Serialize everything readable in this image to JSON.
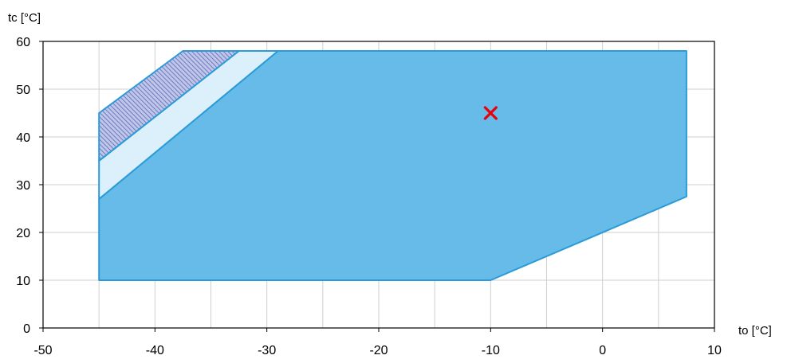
{
  "chart_data": {
    "type": "area",
    "xlabel": "to [°C]",
    "ylabel": "tc [°C]",
    "xlim": [
      -50,
      10
    ],
    "ylim": [
      0,
      60
    ],
    "x_ticks": [
      -50,
      -40,
      -30,
      -20,
      -10,
      0,
      10
    ],
    "y_ticks": [
      0,
      10,
      20,
      30,
      40,
      50,
      60
    ],
    "x_tick_labels": [
      "-50",
      "-40",
      "-30",
      "-20",
      "-10",
      "0",
      "10"
    ],
    "y_tick_labels": [
      "0",
      "10",
      "20",
      "30",
      "40",
      "50",
      "60"
    ],
    "grid": true,
    "regions": [
      {
        "fill": "#66bbe8",
        "stroke": "#2b9bd8",
        "points": [
          [
            -45,
            10
          ],
          [
            -10,
            10
          ],
          [
            7.5,
            27.5
          ],
          [
            7.5,
            58
          ],
          [
            -29,
            58
          ],
          [
            -45,
            27
          ]
        ]
      },
      {
        "fill": "#dcf0fb",
        "stroke": "#2b9bd8",
        "points": [
          [
            -45,
            27
          ],
          [
            -29,
            58
          ],
          [
            -32.5,
            58
          ],
          [
            -45,
            35
          ]
        ]
      },
      {
        "fill": "hatch",
        "stroke": "#2b9bd8",
        "points": [
          [
            -45,
            35
          ],
          [
            -32.5,
            58
          ],
          [
            -37.5,
            58
          ],
          [
            -45,
            45
          ]
        ]
      }
    ],
    "marker": {
      "shape": "x",
      "color": "#e8000b",
      "x": -10,
      "y": 45
    }
  }
}
